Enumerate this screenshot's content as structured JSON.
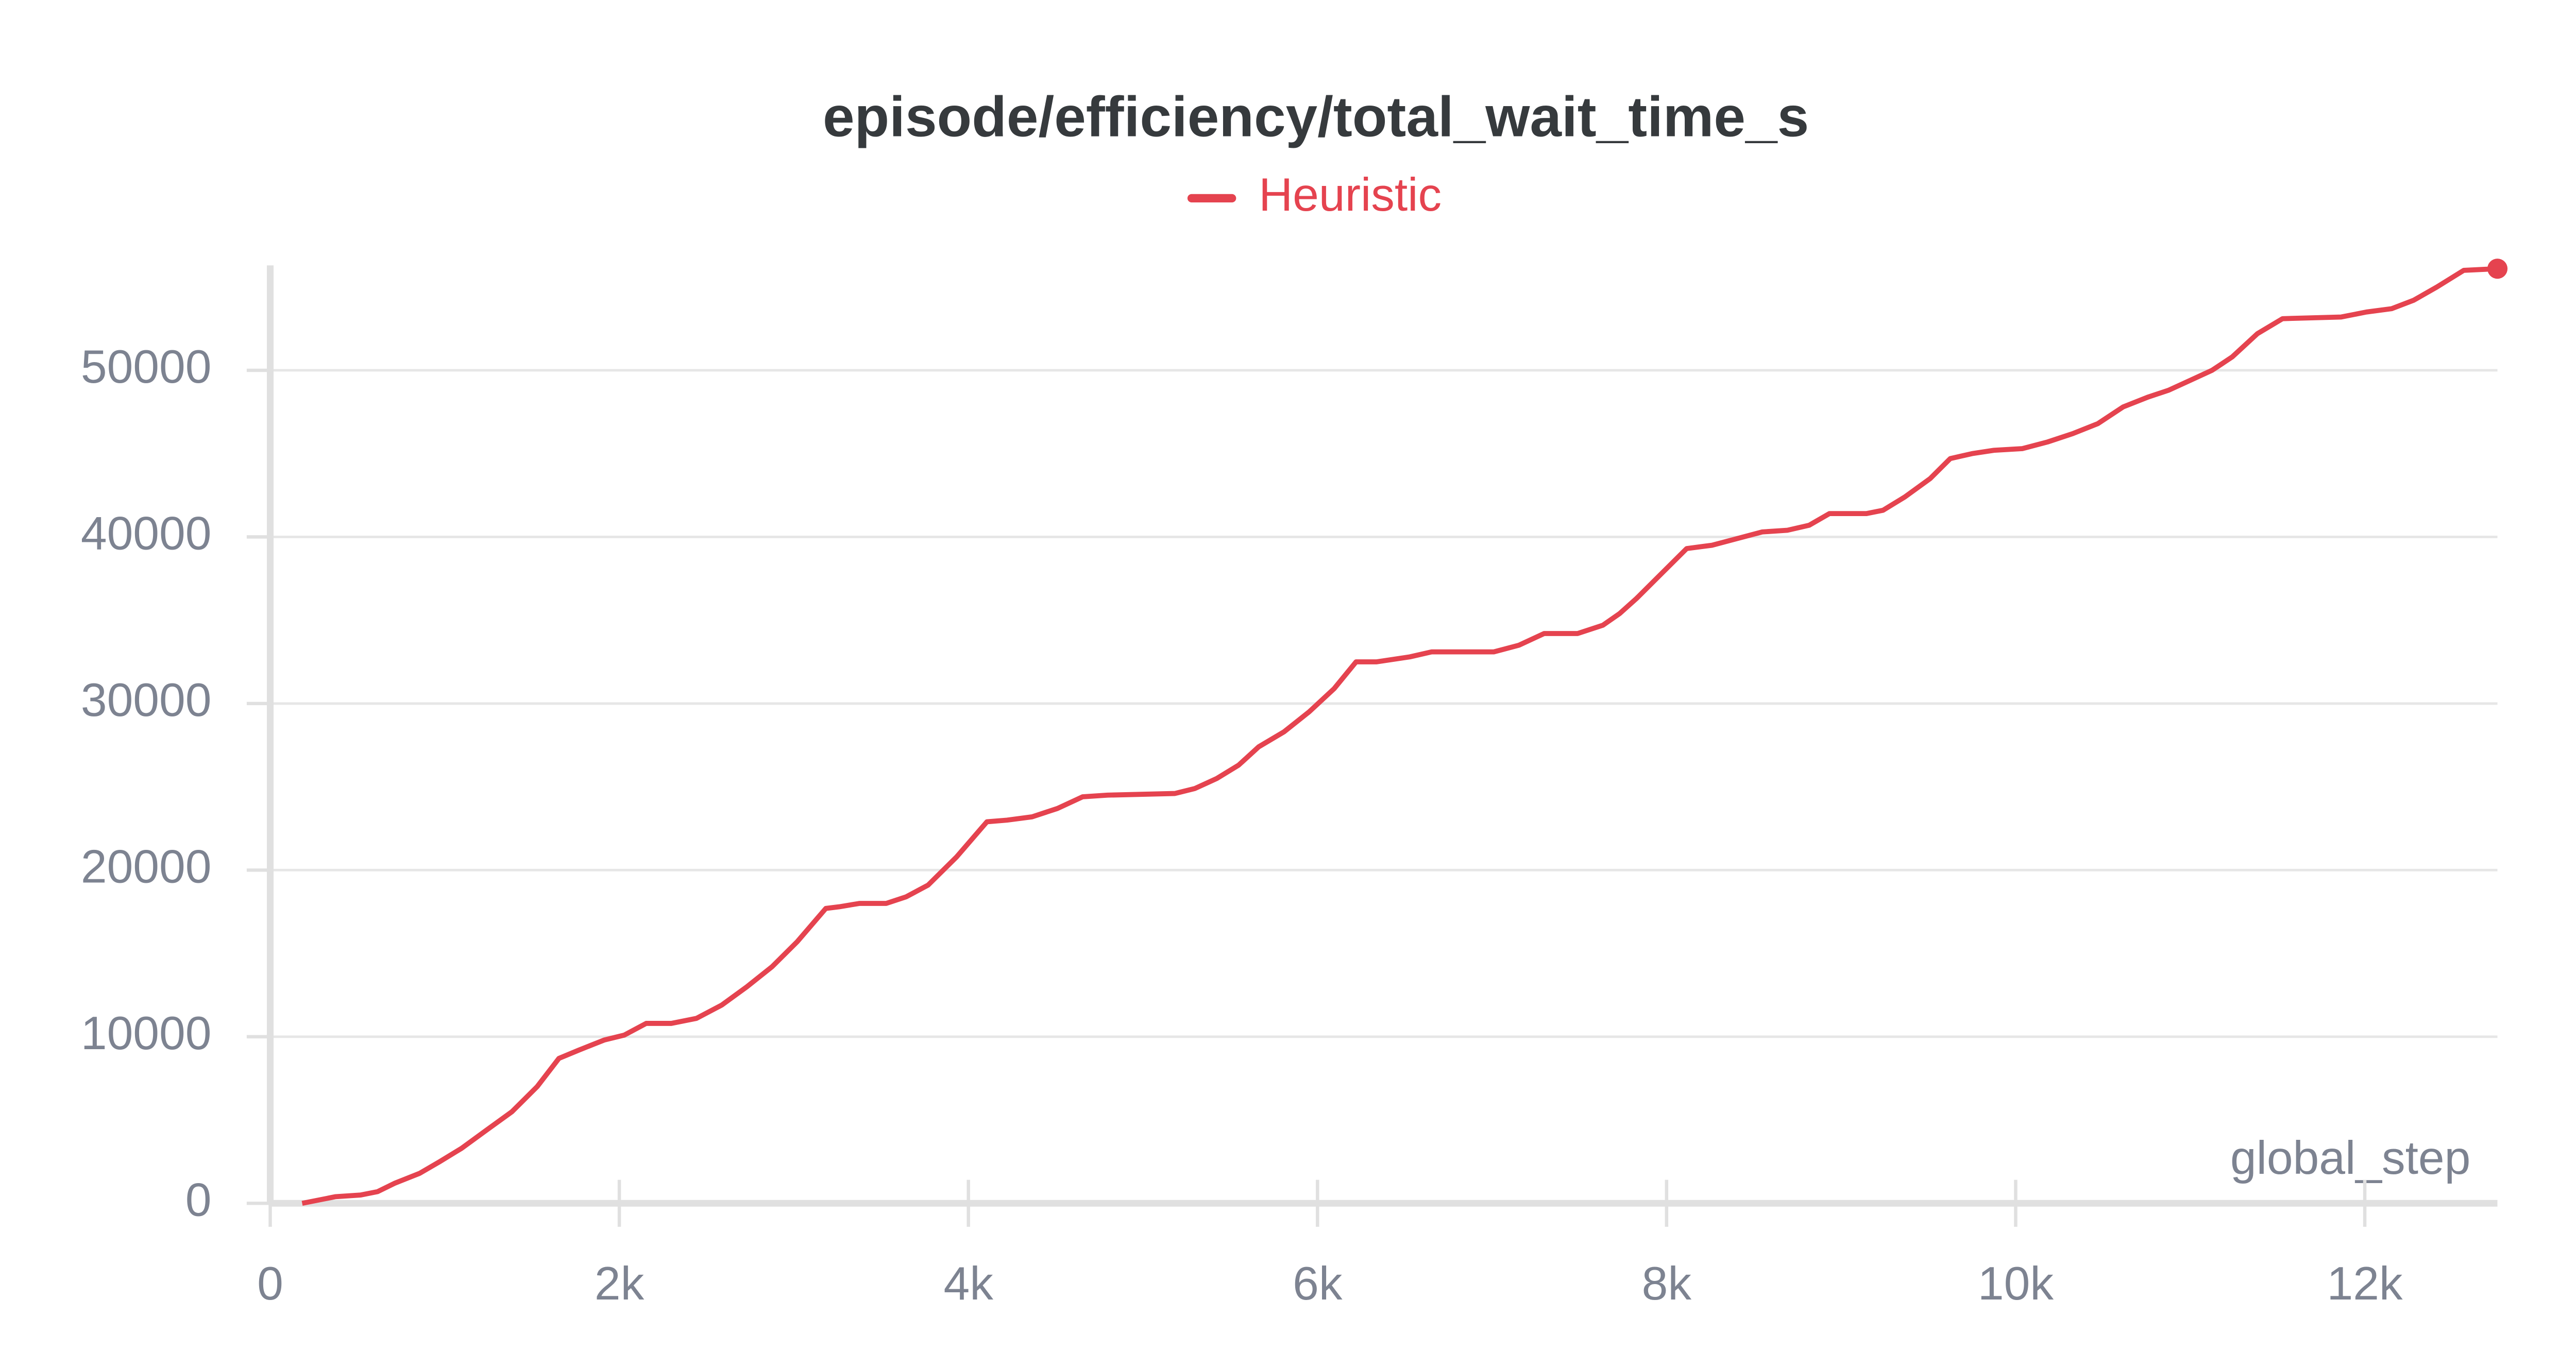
{
  "chart_data": {
    "type": "line",
    "title": "episode/efficiency/total_wait_time_s",
    "xlabel": "global_step",
    "x": [
      183,
      375,
      519,
      615,
      712,
      856,
      971,
      1096,
      1240,
      1385,
      1529,
      1654,
      1769,
      1913,
      2029,
      2154,
      2298,
      2442,
      2587,
      2731,
      2875,
      3019,
      3183,
      3260,
      3375,
      3529,
      3644,
      3769,
      3933,
      4106,
      4221,
      4365,
      4510,
      4654,
      4798,
      5183,
      5298,
      5423,
      5548,
      5663,
      5808,
      5952,
      6096,
      6221,
      6337,
      6529,
      6654,
      7010,
      7154,
      7298,
      7490,
      7635,
      7731,
      7827,
      7971,
      8115,
      8260,
      8404,
      8548,
      8692,
      8817,
      8933,
      9144,
      9240,
      9365,
      9510,
      9625,
      9750,
      9875,
      10038,
      10183,
      10327,
      10471,
      10615,
      10760,
      10875,
      11000,
      11125,
      11240,
      11385,
      11529,
      11865,
      12010,
      12154,
      12279,
      12413,
      12567,
      12760
    ],
    "series": [
      {
        "name": "Heuristic",
        "color": "#e5434f",
        "values": [
          0,
          400,
          500,
          700,
          1200,
          1800,
          2500,
          3300,
          4400,
          5500,
          7000,
          8700,
          9200,
          9800,
          10100,
          10800,
          10800,
          11100,
          11900,
          13000,
          14200,
          15700,
          17700,
          17800,
          18000,
          18000,
          18400,
          19100,
          20800,
          22900,
          23000,
          23200,
          23700,
          24400,
          24500,
          24600,
          24900,
          25500,
          26300,
          27400,
          28300,
          29500,
          30900,
          32500,
          32500,
          32800,
          33100,
          33100,
          33500,
          34200,
          34200,
          34700,
          35400,
          36300,
          37800,
          39300,
          39500,
          39900,
          40300,
          40400,
          40700,
          41400,
          41400,
          41600,
          42400,
          43500,
          44700,
          45000,
          45200,
          45300,
          45700,
          46200,
          46800,
          47800,
          48400,
          48800,
          49400,
          50000,
          50800,
          52200,
          53100,
          53200,
          53500,
          53700,
          54200,
          55000,
          56000,
          56100
        ]
      }
    ],
    "xlim": [
      0,
      12760
    ],
    "ylim": [
      0,
      56300
    ],
    "xticks": [
      0,
      {
        "value": 2000,
        "label": "2k"
      },
      {
        "value": 4000,
        "label": "4k"
      },
      {
        "value": 6000,
        "label": "6k"
      },
      {
        "value": 8000,
        "label": "8k"
      },
      {
        "value": 10000,
        "label": "10k"
      },
      {
        "value": 12000,
        "label": "12k"
      }
    ],
    "yticks": [
      0,
      10000,
      20000,
      30000,
      40000,
      50000
    ],
    "grid": true,
    "legend": "top"
  }
}
